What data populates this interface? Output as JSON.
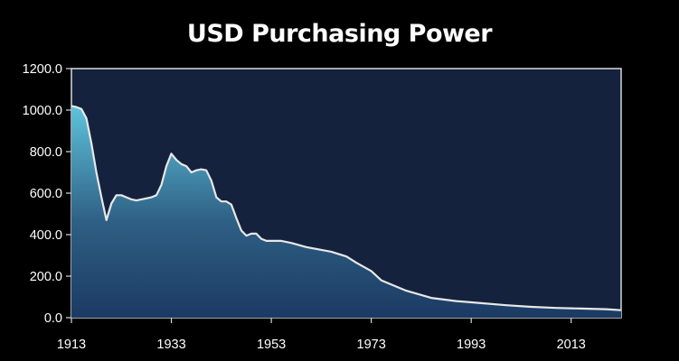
{
  "chart_data": {
    "type": "area",
    "title": "USD Purchasing Power",
    "xlabel": "",
    "ylabel": "",
    "xlim": [
      1913,
      2023
    ],
    "ylim": [
      0,
      1200
    ],
    "x_ticks": [
      "1913",
      "1933",
      "1953",
      "1973",
      "1993",
      "2013"
    ],
    "y_ticks": [
      "0.0",
      "200.0",
      "400.0",
      "600.0",
      "800.0",
      "1000.0",
      "1200.0"
    ],
    "grid": false,
    "legend": "none",
    "colors": {
      "page_background": "#000000",
      "plot_background": "#14223d",
      "plot_border": "#d9d9d9",
      "line": "#e8e8e8",
      "area_top": "#5fc3dc",
      "area_mid": "#2e5f84",
      "area_bottom": "#1b3a63",
      "text": "#ffffff"
    },
    "series": [
      {
        "x": [
          1913,
          1914,
          1915,
          1916,
          1917,
          1918,
          1919,
          1920,
          1921,
          1922,
          1923,
          1924,
          1925,
          1926,
          1927,
          1928,
          1929,
          1930,
          1931,
          1932,
          1933,
          1934,
          1935,
          1936,
          1937,
          1938,
          1939,
          1940,
          1941,
          1942,
          1943,
          1944,
          1945,
          1946,
          1947,
          1948,
          1949,
          1950,
          1951,
          1952,
          1953,
          1955,
          1957,
          1960,
          1965,
          1968,
          1970,
          1973,
          1975,
          1980,
          1985,
          1990,
          1995,
          2000,
          2005,
          2010,
          2015,
          2020,
          2023
        ],
        "values": [
          1020,
          1015,
          1005,
          960,
          840,
          700,
          580,
          470,
          550,
          590,
          590,
          580,
          570,
          565,
          570,
          575,
          580,
          590,
          640,
          730,
          790,
          760,
          740,
          730,
          700,
          710,
          715,
          710,
          660,
          580,
          560,
          560,
          545,
          480,
          420,
          395,
          405,
          405,
          380,
          370,
          370,
          370,
          360,
          340,
          318,
          295,
          265,
          225,
          180,
          130,
          95,
          80,
          70,
          60,
          52,
          47,
          44,
          41,
          36
        ]
      }
    ]
  }
}
